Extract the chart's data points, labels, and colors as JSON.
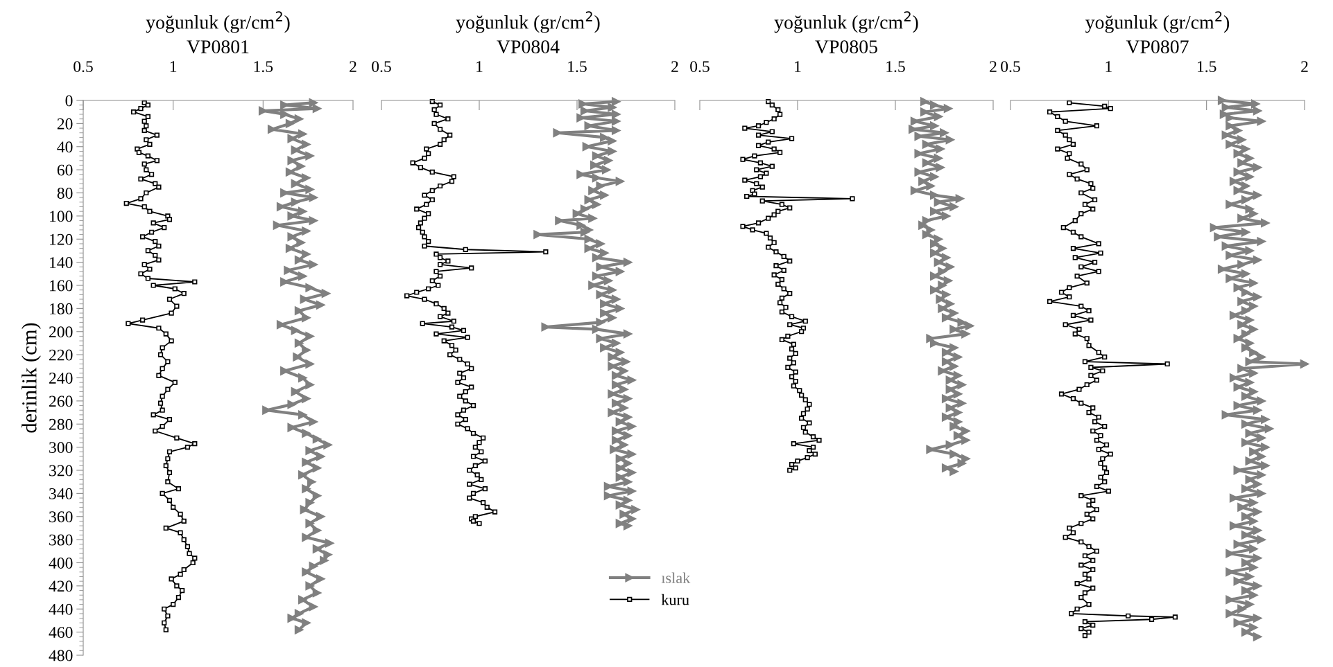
{
  "chart_data": [
    {
      "type": "line",
      "title": "VP0801",
      "xlabel": "yoğunluk (gr/cm$^{2}$)",
      "ylabel": "derinlik (cm)",
      "xlim": [
        0.5,
        2
      ],
      "xticks": [
        0.5,
        1,
        1.5,
        2
      ],
      "ylim": [
        480,
        0
      ],
      "yticks": [
        0,
        20,
        40,
        60,
        80,
        100,
        120,
        140,
        160,
        180,
        200,
        220,
        240,
        260,
        280,
        300,
        320,
        340,
        360,
        380,
        400,
        420,
        440,
        460,
        480
      ],
      "legend": false,
      "grid": false,
      "line_style": "solid",
      "series": [
        {
          "color": "#808080",
          "marker": "triangle",
          "x": [
            1.78,
            1.62,
            1.8,
            1.5,
            1.62,
            1.7,
            1.65,
            1.55,
            1.72,
            1.66,
            1.74,
            1.68,
            1.76,
            1.66,
            1.71,
            1.65,
            1.74,
            1.68,
            1.76,
            1.62,
            1.78,
            1.68,
            1.6,
            1.72,
            1.66,
            1.78,
            1.58,
            1.74,
            1.66,
            1.71,
            1.65,
            1.74,
            1.7,
            1.78,
            1.64,
            1.72,
            1.62,
            1.76,
            1.85,
            1.73,
            1.82,
            1.7,
            1.74,
            1.6,
            1.68,
            1.76,
            1.7,
            1.74,
            1.69,
            1.76,
            1.62,
            1.72,
            1.76,
            1.68,
            1.74,
            1.66,
            1.52,
            1.72,
            1.78,
            1.66,
            1.74,
            1.8,
            1.86,
            1.76,
            1.82,
            1.74,
            1.8,
            1.72,
            1.77,
            1.74,
            1.8,
            1.76,
            1.73,
            1.82,
            1.76,
            1.8,
            1.74,
            1.87,
            1.8,
            1.86,
            1.84,
            1.78,
            1.74,
            1.82,
            1.76,
            1.8,
            1.72,
            1.78,
            1.7,
            1.66,
            1.74,
            1.7
          ],
          "values": [
            2,
            4,
            7,
            9,
            12,
            16,
            20,
            25,
            29,
            33,
            38,
            43,
            48,
            52,
            57,
            62,
            67,
            72,
            77,
            80,
            84,
            88,
            92,
            96,
            100,
            104,
            108,
            113,
            118,
            123,
            128,
            133,
            138,
            142,
            147,
            152,
            157,
            162,
            167,
            172,
            177,
            182,
            188,
            194,
            199,
            204,
            210,
            216,
            222,
            228,
            234,
            240,
            246,
            252,
            258,
            263,
            268,
            272,
            278,
            283,
            288,
            293,
            298,
            303,
            308,
            313,
            318,
            324,
            330,
            336,
            342,
            348,
            354,
            360,
            366,
            372,
            378,
            383,
            388,
            393,
            398,
            403,
            408,
            414,
            420,
            426,
            432,
            438,
            444,
            448,
            452,
            458
          ]
        },
        {
          "color": "#000000",
          "marker": "square",
          "x": [
            0.84,
            0.86,
            0.82,
            0.78,
            0.86,
            0.84,
            0.85,
            0.84,
            0.91,
            0.85,
            0.87,
            0.8,
            0.81,
            0.86,
            0.91,
            0.84,
            0.85,
            0.88,
            0.82,
            0.9,
            0.92,
            0.85,
            0.82,
            0.74,
            0.84,
            0.87,
            0.97,
            0.98,
            0.89,
            0.95,
            0.88,
            0.83,
            0.9,
            0.92,
            0.86,
            0.9,
            0.92,
            0.84,
            0.87,
            0.82,
            0.86,
            1.12,
            0.89,
            1.01,
            1.06,
            0.98,
            1.02,
            0.99,
            0.83,
            0.75,
            0.92,
            0.96,
            0.99,
            0.94,
            0.93,
            0.97,
            0.94,
            0.92,
            1.01,
            0.97,
            0.94,
            0.93,
            0.94,
            0.89,
            0.98,
            0.94,
            0.9,
            1.02,
            1.12,
            1.08,
            0.98,
            0.97,
            0.96,
            0.98,
            0.97,
            1.03,
            0.94,
            0.98,
            1.0,
            1.04,
            1.06,
            0.96,
            1.04,
            1.06,
            1.08,
            1.09,
            1.12,
            1.11,
            1.06,
            1.04,
            0.99,
            1.02,
            1.05,
            1.03,
            1.0,
            0.95,
            0.97,
            0.95,
            0.96
          ],
          "values": [
            2,
            4,
            7,
            10,
            14,
            18,
            22,
            26,
            30,
            34,
            38,
            42,
            45,
            48,
            52,
            55,
            60,
            64,
            68,
            72,
            75,
            80,
            85,
            89,
            92,
            96,
            100,
            103,
            106,
            110,
            114,
            118,
            122,
            126,
            130,
            134,
            138,
            142,
            146,
            150,
            154,
            157,
            160,
            163,
            167,
            172,
            178,
            184,
            190,
            193,
            197,
            202,
            208,
            214,
            220,
            226,
            232,
            238,
            244,
            250,
            256,
            262,
            268,
            272,
            276,
            282,
            286,
            292,
            297,
            300,
            304,
            310,
            316,
            322,
            330,
            336,
            340,
            346,
            352,
            358,
            364,
            370,
            374,
            380,
            386,
            392,
            396,
            400,
            406,
            410,
            414,
            420,
            424,
            430,
            436,
            440,
            446,
            452,
            458
          ]
        }
      ]
    },
    {
      "type": "line",
      "title": "VP0804",
      "xlabel": "yoğunluk (gr/cm$^{2}$)",
      "xlim": [
        0.5,
        2
      ],
      "xticks": [
        0.5,
        1,
        1.5,
        2
      ],
      "ylim": [
        480,
        0
      ],
      "tick_labels": "x",
      "legend": "bottom right",
      "grid": false,
      "line_style": "solid",
      "series": [
        {
          "name": "ıslak",
          "color": "#808080",
          "marker": "triangle",
          "x": [
            1.7,
            1.53,
            1.68,
            1.54,
            1.7,
            1.52,
            1.7,
            1.56,
            1.7,
            1.4,
            1.64,
            1.68,
            1.55,
            1.68,
            1.6,
            1.66,
            1.59,
            1.65,
            1.52,
            1.6,
            1.72,
            1.62,
            1.58,
            1.64,
            1.56,
            1.6,
            1.54,
            1.5,
            1.58,
            1.41,
            1.52,
            1.56,
            1.54,
            1.3,
            1.56,
            1.62,
            1.56,
            1.64,
            1.6,
            1.76,
            1.62,
            1.72,
            1.6,
            1.66,
            1.58,
            1.68,
            1.62,
            1.7,
            1.64,
            1.72,
            1.64,
            1.68,
            1.62,
            1.34,
            1.6,
            1.76,
            1.62,
            1.7,
            1.64,
            1.72,
            1.68,
            1.75,
            1.68,
            1.74,
            1.7,
            1.78,
            1.7,
            1.74,
            1.68,
            1.76,
            1.7,
            1.74,
            1.68,
            1.76,
            1.72,
            1.78,
            1.7,
            1.76,
            1.7,
            1.74,
            1.69,
            1.78,
            1.72,
            1.76,
            1.72,
            1.78,
            1.72,
            1.76,
            1.66,
            1.78,
            1.66,
            1.76,
            1.72,
            1.8,
            1.74,
            1.78,
            1.72,
            1.76
          ],
          "values": [
            1,
            3,
            6,
            9,
            12,
            15,
            18,
            22,
            26,
            28,
            32,
            35,
            40,
            44,
            48,
            52,
            56,
            60,
            64,
            67,
            70,
            74,
            78,
            82,
            86,
            90,
            94,
            98,
            102,
            104,
            108,
            112,
            114,
            116,
            120,
            124,
            128,
            132,
            136,
            140,
            144,
            148,
            152,
            156,
            160,
            164,
            168,
            172,
            176,
            180,
            184,
            188,
            192,
            196,
            198,
            202,
            206,
            210,
            214,
            218,
            222,
            226,
            230,
            234,
            238,
            242,
            246,
            250,
            254,
            258,
            262,
            266,
            270,
            274,
            278,
            282,
            286,
            290,
            294,
            298,
            302,
            306,
            310,
            314,
            318,
            322,
            326,
            330,
            334,
            338,
            342,
            346,
            350,
            354,
            358,
            362,
            366,
            368
          ]
        },
        {
          "name": "kuru",
          "color": "#000000",
          "marker": "square",
          "x": [
            0.76,
            0.8,
            0.77,
            0.78,
            0.84,
            0.77,
            0.8,
            0.85,
            0.82,
            0.8,
            0.73,
            0.74,
            0.72,
            0.66,
            0.7,
            0.76,
            0.87,
            0.86,
            0.8,
            0.76,
            0.72,
            0.76,
            0.73,
            0.68,
            0.74,
            0.72,
            0.7,
            0.69,
            0.71,
            0.72,
            0.74,
            0.72,
            0.93,
            1.34,
            0.78,
            0.8,
            0.84,
            0.8,
            0.96,
            0.78,
            0.8,
            0.76,
            0.79,
            0.74,
            0.68,
            0.63,
            0.72,
            0.78,
            0.82,
            0.84,
            0.8,
            0.87,
            0.71,
            0.86,
            0.92,
            0.78,
            0.94,
            0.82,
            0.86,
            0.88,
            0.85,
            0.9,
            0.94,
            0.96,
            0.9,
            0.92,
            0.89,
            0.96,
            0.93,
            0.9,
            0.93,
            0.97,
            0.92,
            0.89,
            0.93,
            0.89,
            0.94,
            0.97,
            1.02,
            1.0,
            0.98,
            1.01,
            0.97,
            1.03,
            0.98,
            0.95,
            0.99,
            1.01,
            0.95,
            1.03,
            0.97,
            0.95,
            1.02,
            1.04,
            1.08,
            0.98,
            0.96,
            0.97,
            1.0
          ],
          "values": [
            1,
            4,
            8,
            12,
            16,
            20,
            25,
            30,
            34,
            38,
            42,
            46,
            50,
            54,
            58,
            62,
            66,
            70,
            74,
            78,
            82,
            86,
            90,
            94,
            98,
            102,
            106,
            110,
            114,
            118,
            122,
            126,
            129,
            131,
            133,
            136,
            139,
            142,
            145,
            148,
            152,
            156,
            160,
            163,
            166,
            169,
            172,
            176,
            180,
            184,
            187,
            191,
            193,
            196,
            199,
            202,
            205,
            208,
            212,
            216,
            220,
            224,
            228,
            232,
            236,
            240,
            244,
            248,
            252,
            256,
            260,
            264,
            268,
            272,
            276,
            280,
            284,
            288,
            292,
            296,
            300,
            304,
            308,
            312,
            316,
            320,
            324,
            328,
            332,
            336,
            340,
            344,
            348,
            352,
            356,
            360,
            362,
            364,
            366
          ]
        }
      ]
    },
    {
      "type": "line",
      "title": "VP0805",
      "xlabel": "yoğunluk (gr/cm$^{2}$)",
      "xlim": [
        0.5,
        2
      ],
      "xticks": [
        0.5,
        1,
        1.5,
        2
      ],
      "ylim": [
        480,
        0
      ],
      "tick_labels": "x",
      "legend": false,
      "grid": false,
      "line_style": "solid",
      "series": [
        {
          "color": "#808080",
          "marker": "triangle",
          "x": [
            1.65,
            1.7,
            1.77,
            1.65,
            1.72,
            1.6,
            1.7,
            1.59,
            1.75,
            1.62,
            1.78,
            1.66,
            1.73,
            1.62,
            1.72,
            1.66,
            1.73,
            1.62,
            1.7,
            1.64,
            1.68,
            1.6,
            1.7,
            1.83,
            1.72,
            1.8,
            1.7,
            1.76,
            1.66,
            1.64,
            1.68,
            1.66,
            1.72,
            1.7,
            1.74,
            1.7,
            1.76,
            1.72,
            1.78,
            1.74,
            1.7,
            1.77,
            1.74,
            1.7,
            1.76,
            1.73,
            1.78,
            1.74,
            1.8,
            1.76,
            1.84,
            1.88,
            1.8,
            1.86,
            1.68,
            1.7,
            1.8,
            1.76,
            1.82,
            1.76,
            1.8,
            1.74,
            1.82,
            1.78,
            1.84,
            1.78,
            1.82,
            1.76,
            1.84,
            1.78,
            1.82,
            1.76,
            1.82,
            1.8,
            1.86,
            1.82,
            1.86,
            1.78,
            1.68,
            1.8,
            1.86,
            1.84,
            1.76,
            1.8
          ],
          "values": [
            1,
            4,
            7,
            10,
            14,
            18,
            22,
            25,
            28,
            31,
            34,
            38,
            42,
            46,
            50,
            54,
            58,
            62,
            66,
            70,
            74,
            78,
            82,
            85,
            88,
            92,
            96,
            100,
            104,
            108,
            112,
            116,
            120,
            124,
            128,
            132,
            136,
            140,
            144,
            148,
            152,
            156,
            160,
            164,
            168,
            172,
            176,
            180,
            184,
            188,
            192,
            195,
            198,
            202,
            206,
            210,
            214,
            218,
            222,
            226,
            230,
            234,
            238,
            242,
            246,
            250,
            254,
            258,
            262,
            266,
            270,
            274,
            278,
            282,
            286,
            290,
            294,
            298,
            302,
            306,
            310,
            314,
            318,
            321
          ]
        },
        {
          "color": "#000000",
          "marker": "square",
          "x": [
            0.85,
            0.87,
            0.9,
            0.91,
            0.88,
            0.84,
            0.8,
            0.73,
            0.87,
            0.8,
            0.97,
            0.85,
            0.8,
            0.88,
            0.91,
            0.78,
            0.72,
            0.81,
            0.87,
            0.79,
            0.84,
            0.81,
            0.73,
            0.79,
            0.82,
            0.77,
            0.78,
            0.74,
            1.28,
            0.82,
            0.92,
            0.96,
            0.9,
            0.88,
            0.85,
            0.8,
            0.72,
            0.77,
            0.84,
            0.86,
            0.88,
            0.85,
            0.89,
            0.93,
            0.96,
            0.89,
            0.93,
            0.88,
            0.92,
            0.9,
            0.93,
            0.96,
            0.92,
            0.91,
            0.94,
            0.92,
            0.97,
            1.04,
            0.96,
            1.03,
            1.02,
            0.95,
            0.92,
            0.98,
            0.97,
            0.99,
            0.96,
            0.98,
            0.95,
            0.99,
            0.97,
            0.99,
            0.98,
            1.01,
            1.02,
            1.04,
            1.06,
            1.05,
            1.03,
            1.02,
            1.06,
            1.03,
            1.04,
            1.08,
            1.11,
            0.98,
            1.08,
            1.06,
            1.09,
            1.05,
            1.0,
            0.97,
            0.99,
            0.96
          ],
          "values": [
            1,
            4,
            8,
            12,
            16,
            19,
            22,
            24,
            27,
            30,
            33,
            36,
            39,
            42,
            45,
            48,
            51,
            54,
            57,
            60,
            63,
            66,
            69,
            72,
            75,
            78,
            81,
            83,
            85,
            87,
            90,
            93,
            96,
            99,
            102,
            106,
            109,
            112,
            115,
            119,
            123,
            127,
            131,
            135,
            139,
            143,
            147,
            151,
            155,
            159,
            163,
            167,
            171,
            175,
            179,
            183,
            187,
            191,
            194,
            197,
            200,
            204,
            207,
            211,
            215,
            219,
            223,
            227,
            231,
            235,
            239,
            243,
            247,
            251,
            255,
            259,
            263,
            267,
            271,
            275,
            279,
            283,
            287,
            291,
            294,
            297,
            300,
            303,
            306,
            309,
            312,
            315,
            318,
            320
          ]
        }
      ]
    },
    {
      "type": "line",
      "title": "VP0807",
      "xlabel": "yoğunluk (gr/cm$^{2}$)",
      "xlim": [
        0.5,
        2
      ],
      "xticks": [
        0.5,
        1,
        1.5,
        2
      ],
      "ylim": [
        480,
        0
      ],
      "tick_labels": "x",
      "legend": false,
      "grid": false,
      "line_style": "solid",
      "series": [
        {
          "color": "#808080",
          "marker": "triangle",
          "x": [
            1.58,
            1.75,
            1.6,
            1.76,
            1.59,
            1.62,
            1.78,
            1.62,
            1.66,
            1.6,
            1.68,
            1.62,
            1.7,
            1.66,
            1.72,
            1.68,
            1.76,
            1.66,
            1.72,
            1.64,
            1.7,
            1.66,
            1.76,
            1.7,
            1.62,
            1.72,
            1.74,
            1.68,
            1.8,
            1.54,
            1.7,
            1.56,
            1.78,
            1.6,
            1.72,
            1.62,
            1.76,
            1.68,
            1.58,
            1.7,
            1.62,
            1.74,
            1.66,
            1.7,
            1.76,
            1.68,
            1.74,
            1.7,
            1.64,
            1.72,
            1.68,
            1.74,
            1.7,
            1.66,
            1.72,
            1.7,
            1.74,
            1.78,
            1.72,
            2.0,
            1.68,
            1.74,
            1.64,
            1.72,
            1.66,
            1.74,
            1.7,
            1.78,
            1.66,
            1.76,
            1.6,
            1.8,
            1.7,
            1.82,
            1.72,
            1.78,
            1.7,
            1.8,
            1.74,
            1.78,
            1.72,
            1.8,
            1.66,
            1.78,
            1.72,
            1.76,
            1.7,
            1.78,
            1.64,
            1.74,
            1.68,
            1.76,
            1.7,
            1.74,
            1.64,
            1.76,
            1.7,
            1.78,
            1.66,
            1.74,
            1.62,
            1.76,
            1.7,
            1.74,
            1.62,
            1.72,
            1.66,
            1.76,
            1.7,
            1.74,
            1.62,
            1.72,
            1.68,
            1.62,
            1.76,
            1.66,
            1.74,
            1.7,
            1.76
          ],
          "values": [
            0,
            3,
            6,
            9,
            12,
            15,
            18,
            22,
            26,
            30,
            34,
            38,
            42,
            46,
            50,
            54,
            58,
            62,
            66,
            70,
            74,
            78,
            82,
            86,
            90,
            94,
            98,
            102,
            106,
            110,
            114,
            118,
            122,
            126,
            130,
            134,
            138,
            142,
            146,
            150,
            154,
            158,
            162,
            166,
            170,
            174,
            178,
            182,
            186,
            190,
            194,
            198,
            202,
            206,
            210,
            214,
            218,
            222,
            226,
            228,
            232,
            236,
            240,
            244,
            248,
            252,
            256,
            260,
            264,
            268,
            272,
            276,
            280,
            284,
            288,
            292,
            296,
            300,
            304,
            308,
            312,
            316,
            320,
            324,
            328,
            332,
            336,
            340,
            344,
            348,
            352,
            356,
            360,
            364,
            368,
            372,
            376,
            380,
            384,
            388,
            392,
            396,
            400,
            404,
            408,
            412,
            416,
            420,
            424,
            428,
            432,
            436,
            440,
            444,
            448,
            452,
            456,
            460,
            464
          ]
        },
        {
          "color": "#000000",
          "marker": "square",
          "x": [
            0.8,
            0.98,
            1.01,
            0.7,
            0.74,
            0.78,
            0.94,
            0.74,
            0.78,
            0.8,
            0.82,
            0.74,
            0.8,
            0.79,
            0.86,
            0.89,
            0.8,
            0.84,
            0.91,
            0.92,
            0.86,
            0.93,
            0.88,
            0.92,
            0.86,
            0.83,
            0.77,
            0.82,
            0.86,
            0.95,
            0.82,
            0.96,
            0.83,
            0.93,
            0.86,
            0.95,
            0.84,
            0.89,
            0.8,
            0.76,
            0.8,
            0.7,
            0.86,
            0.9,
            0.82,
            0.91,
            0.78,
            0.85,
            0.83,
            0.89,
            0.9,
            0.95,
            0.98,
            0.88,
            1.3,
            0.91,
            0.97,
            0.91,
            0.94,
            0.89,
            0.85,
            0.76,
            0.82,
            0.86,
            0.92,
            0.9,
            0.95,
            0.93,
            0.98,
            0.92,
            0.96,
            0.94,
            0.99,
            0.95,
            1.01,
            0.97,
            0.96,
            0.98,
            0.99,
            0.96,
            0.98,
            0.94,
            1.0,
            0.86,
            0.92,
            0.9,
            0.94,
            0.89,
            0.92,
            0.86,
            0.8,
            0.82,
            0.78,
            0.86,
            0.9,
            0.94,
            0.88,
            0.92,
            0.86,
            0.92,
            0.88,
            0.9,
            0.84,
            0.92,
            0.88,
            0.86,
            0.9,
            0.84,
            0.81,
            1.1,
            1.34,
            1.22,
            0.88,
            0.92,
            0.86,
            0.9,
            0.88
          ],
          "values": [
            2,
            5,
            7,
            10,
            14,
            18,
            22,
            26,
            30,
            34,
            38,
            42,
            46,
            50,
            55,
            60,
            64,
            68,
            72,
            76,
            80,
            86,
            90,
            94,
            98,
            104,
            110,
            114,
            118,
            124,
            128,
            132,
            136,
            140,
            144,
            148,
            152,
            158,
            162,
            166,
            170,
            174,
            178,
            182,
            186,
            190,
            194,
            198,
            202,
            206,
            212,
            218,
            222,
            226,
            228,
            231,
            234,
            238,
            242,
            246,
            250,
            254,
            258,
            262,
            266,
            270,
            274,
            278,
            282,
            286,
            290,
            294,
            298,
            302,
            306,
            310,
            314,
            318,
            322,
            326,
            330,
            334,
            338,
            342,
            346,
            350,
            354,
            358,
            362,
            366,
            370,
            374,
            378,
            382,
            386,
            390,
            394,
            398,
            402,
            406,
            410,
            414,
            418,
            422,
            426,
            430,
            436,
            440,
            444,
            446,
            447,
            449,
            451,
            454,
            457,
            460,
            463
          ]
        }
      ]
    }
  ]
}
